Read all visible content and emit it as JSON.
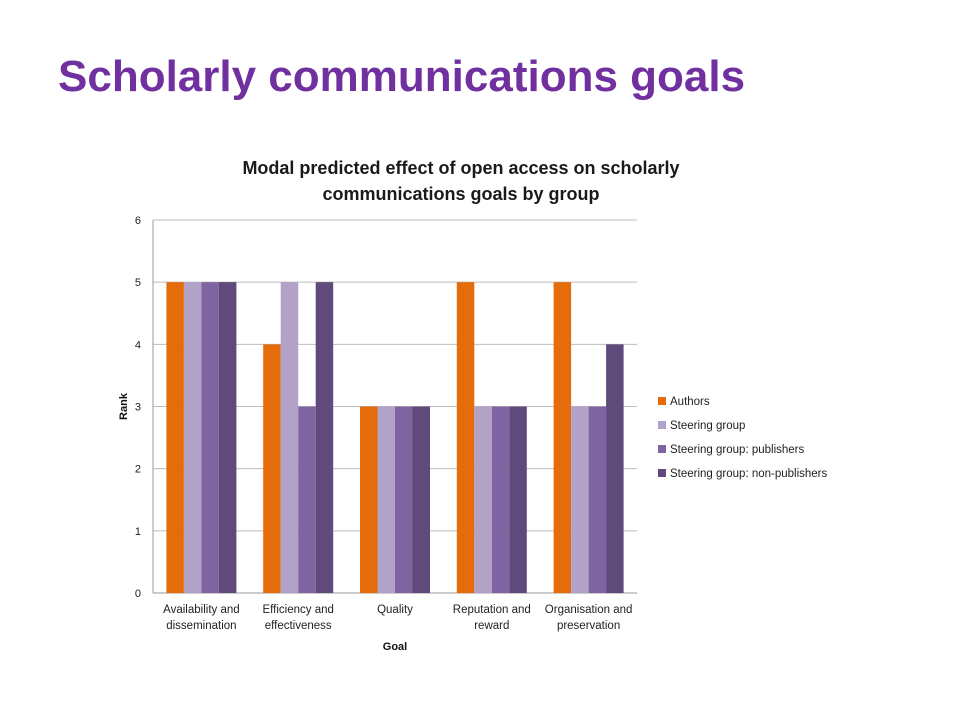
{
  "slide": {
    "title": "Scholarly communications goals"
  },
  "chart_data": {
    "type": "bar",
    "title_lines": [
      "Modal predicted effect of open access on scholarly",
      "communications goals by group"
    ],
    "xlabel": "Goal",
    "ylabel": "Rank",
    "ylim": [
      0,
      6
    ],
    "yticks": [
      0,
      1,
      2,
      3,
      4,
      5,
      6
    ],
    "grid": true,
    "legend_position": "right",
    "categories": [
      [
        "Availability and",
        "dissemination"
      ],
      [
        "Efficiency and",
        "effectiveness"
      ],
      [
        "Quality"
      ],
      [
        "Reputation and",
        "reward"
      ],
      [
        "Organisation and",
        "preservation"
      ]
    ],
    "series": [
      {
        "name": "Authors",
        "color": "#e46c0a",
        "values": [
          5,
          4,
          3,
          5,
          5
        ]
      },
      {
        "name": "Steering group",
        "color": "#b3a2c7",
        "values": [
          5,
          5,
          3,
          3,
          3
        ]
      },
      {
        "name": "Steering group: publishers",
        "color": "#8064a2",
        "values": [
          5,
          3,
          3,
          3,
          3
        ]
      },
      {
        "name": "Steering group: non-publishers",
        "color": "#604a7b",
        "values": [
          5,
          5,
          3,
          3,
          4
        ]
      }
    ]
  }
}
